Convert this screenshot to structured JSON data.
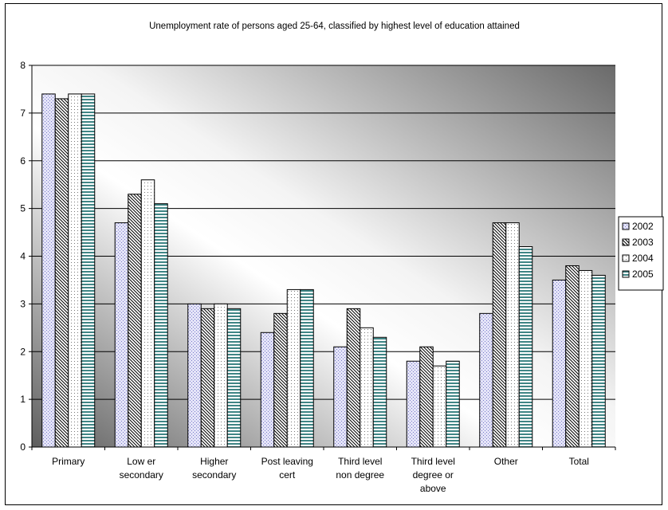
{
  "chart_data": {
    "type": "bar",
    "title": "Unemployment rate of persons aged 25-64, classified by highest level of education attained",
    "categories": [
      [
        "Primary"
      ],
      [
        "Low er",
        "secondary"
      ],
      [
        "Higher",
        "secondary"
      ],
      [
        "Post leaving",
        "cert"
      ],
      [
        "Third level",
        "non degree"
      ],
      [
        "Third level",
        "degree or",
        "above"
      ],
      [
        "Other"
      ],
      [
        "Total"
      ]
    ],
    "series": [
      {
        "name": "2002",
        "values": [
          7.4,
          4.7,
          3.0,
          2.4,
          2.1,
          1.8,
          2.8,
          3.5
        ]
      },
      {
        "name": "2003",
        "values": [
          7.3,
          5.3,
          2.9,
          2.8,
          2.9,
          2.1,
          4.7,
          3.8
        ]
      },
      {
        "name": "2004",
        "values": [
          7.4,
          5.6,
          3.0,
          3.3,
          2.5,
          1.7,
          4.7,
          3.7
        ]
      },
      {
        "name": "2005",
        "values": [
          7.4,
          5.1,
          2.9,
          3.3,
          2.3,
          1.8,
          4.2,
          3.6
        ]
      }
    ],
    "ylim": [
      0,
      8
    ],
    "yticks": [
      "0",
      "1",
      "2",
      "3",
      "4",
      "5",
      "6",
      "7",
      "8"
    ],
    "grid": true,
    "legend_position": "right"
  }
}
